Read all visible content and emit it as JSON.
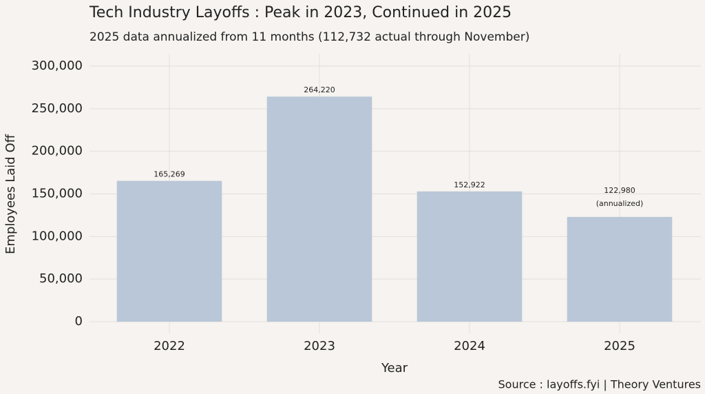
{
  "chart_data": {
    "type": "bar",
    "title": "Tech Industry Layoffs : Peak in 2023, Continued in 2025",
    "subtitle": "2025 data annualized from 11 months (112,732 actual through November)",
    "x_label": "Year",
    "y_label": "Employees Laid Off",
    "source": "Source : layoffs.fyi | Theory Ventures",
    "categories": [
      "2022",
      "2023",
      "2024",
      "2025"
    ],
    "values": [
      165269,
      264220,
      152922,
      122980
    ],
    "value_labels": [
      "165,269",
      "264,220",
      "152,922",
      "122,980"
    ],
    "annotations": [
      {
        "category": "2025",
        "text": "(annualized)"
      }
    ],
    "color": "#b9c7d8",
    "ylim": [
      0,
      300000
    ],
    "yticks": [
      0,
      {
        "value": 50000,
        "label": "50,000"
      },
      {
        "value": 100000,
        "label": "100,000"
      },
      {
        "value": 150000,
        "label": "150,000"
      },
      {
        "value": 200000,
        "label": "200,000"
      },
      {
        "value": 250000,
        "label": "250,000"
      },
      {
        "value": 300000,
        "label": "300,000"
      }
    ],
    "grid": true
  }
}
